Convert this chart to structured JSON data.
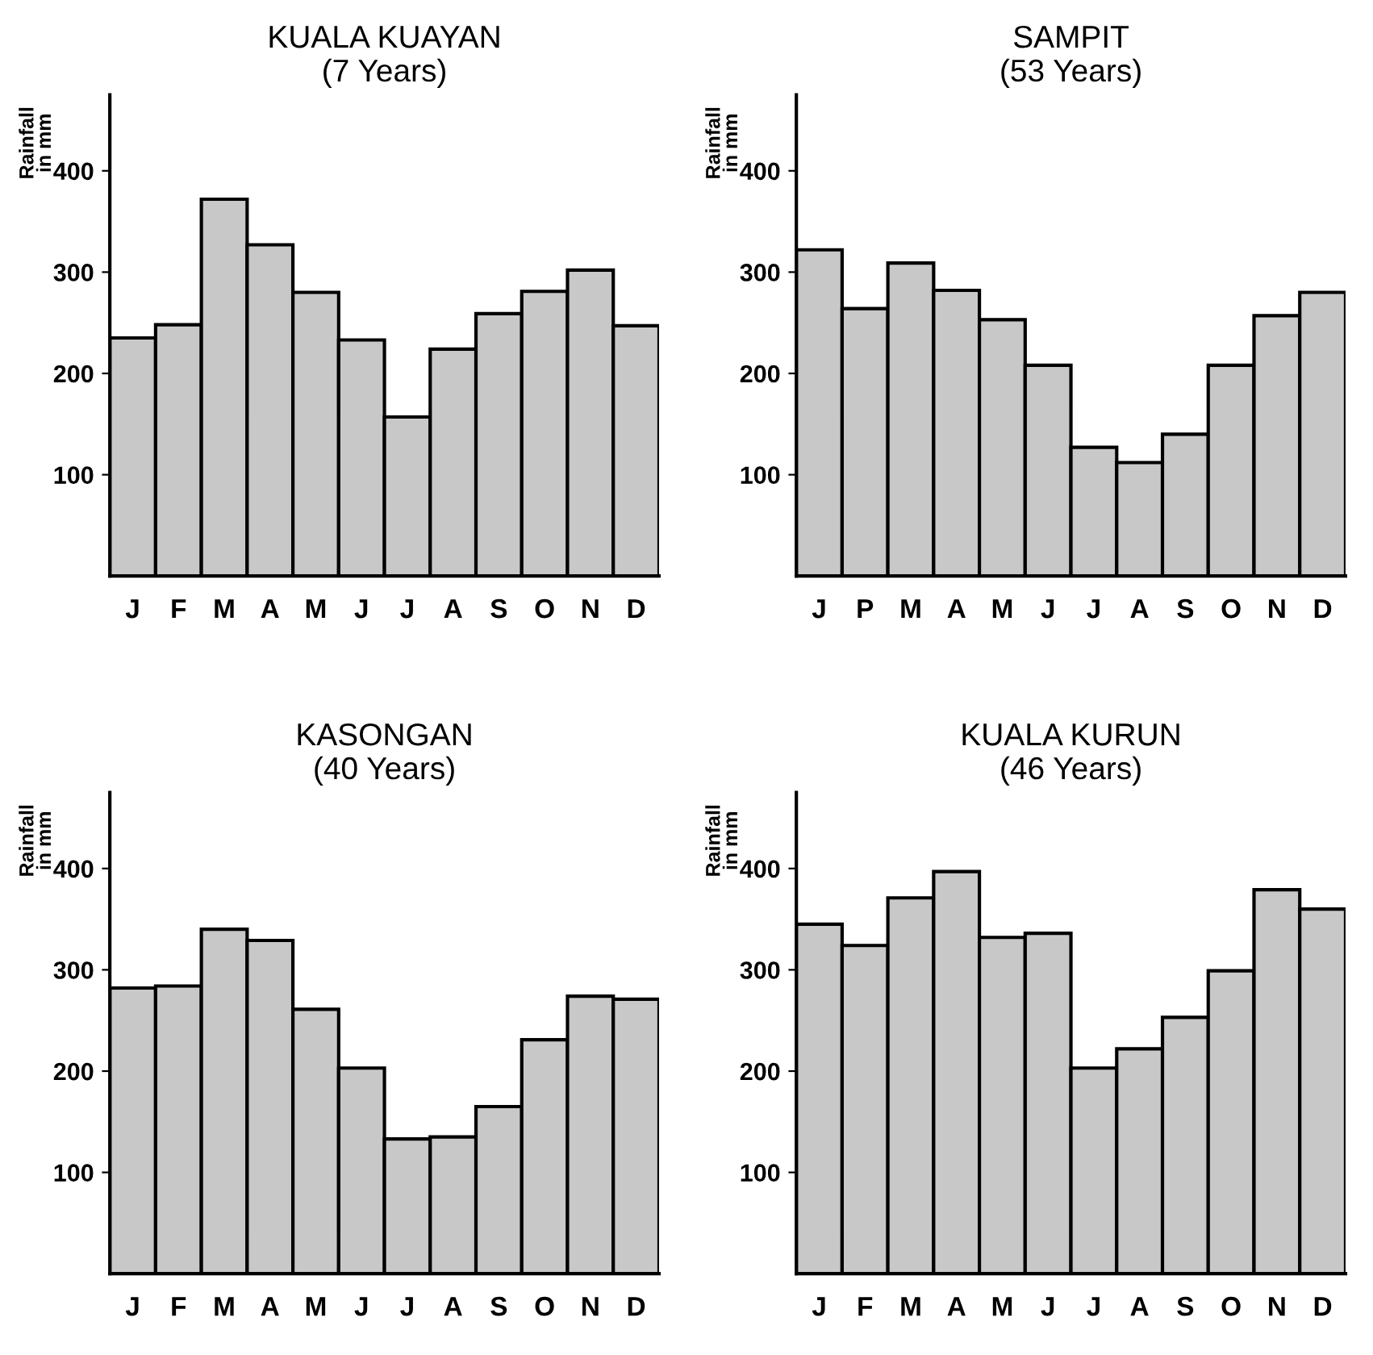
{
  "chart_data": [
    {
      "type": "bar",
      "title": "KUALA KUAYAN\n(7 Years)",
      "ylabel": "Rainfall\nin mm",
      "categories": [
        "J",
        "F",
        "M",
        "A",
        "M",
        "J",
        "J",
        "A",
        "S",
        "O",
        "N",
        "D"
      ],
      "values": [
        235,
        248,
        372,
        327,
        280,
        233,
        157,
        224,
        259,
        281,
        302,
        247
      ],
      "color": "#c8c8c8",
      "ylim": [
        0,
        475
      ],
      "yticks": [
        100,
        200,
        300,
        400
      ],
      "grid": false
    },
    {
      "type": "bar",
      "title": "SAMPIT\n(53 Years)",
      "ylabel": "Rainfall\nin mm",
      "categories": [
        "J",
        "P",
        "M",
        "A",
        "M",
        "J",
        "J",
        "A",
        "S",
        "O",
        "N",
        "D"
      ],
      "values": [
        322,
        264,
        309,
        282,
        253,
        208,
        127,
        112,
        140,
        208,
        257,
        280
      ],
      "color": "#c8c8c8",
      "ylim": [
        0,
        475
      ],
      "yticks": [
        100,
        200,
        300,
        400
      ],
      "grid": false
    },
    {
      "type": "bar",
      "title": "KASONGAN\n(40 Years)",
      "ylabel": "Rainfall\nin mm",
      "categories": [
        "J",
        "F",
        "M",
        "A",
        "M",
        "J",
        "J",
        "A",
        "S",
        "O",
        "N",
        "D"
      ],
      "values": [
        282,
        284,
        340,
        329,
        261,
        203,
        133,
        135,
        165,
        231,
        274,
        271
      ],
      "color": "#c8c8c8",
      "ylim": [
        0,
        475
      ],
      "yticks": [
        100,
        200,
        300,
        400
      ],
      "grid": false
    },
    {
      "type": "bar",
      "title": "KUALA KURUN\n(46 Years)",
      "ylabel": "Rainfall\nin mm",
      "categories": [
        "J",
        "F",
        "M",
        "A",
        "M",
        "J",
        "J",
        "A",
        "S",
        "O",
        "N",
        "D"
      ],
      "values": [
        345,
        324,
        371,
        397,
        332,
        336,
        203,
        222,
        253,
        299,
        379,
        360
      ],
      "color": "#c8c8c8",
      "ylim": [
        0,
        475
      ],
      "yticks": [
        100,
        200,
        300,
        400
      ],
      "grid": false
    }
  ]
}
